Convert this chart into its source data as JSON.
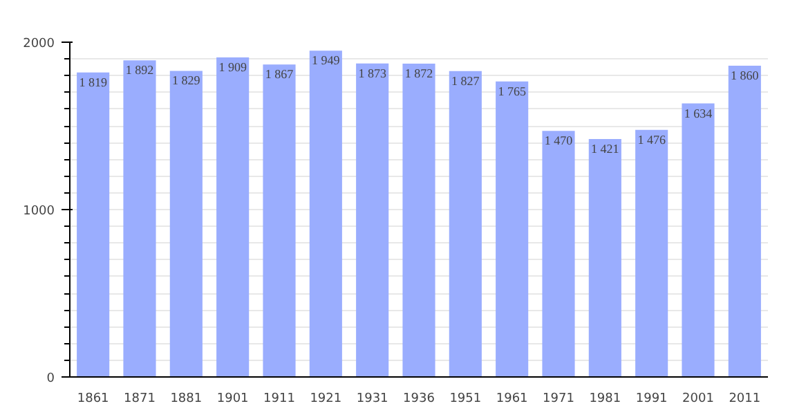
{
  "chart_data": {
    "type": "bar",
    "categories": [
      "1861",
      "1871",
      "1881",
      "1901",
      "1911",
      "1921",
      "1931",
      "1936",
      "1951",
      "1961",
      "1971",
      "1981",
      "1991",
      "2001",
      "2011"
    ],
    "values": [
      1819,
      1892,
      1829,
      1909,
      1867,
      1949,
      1873,
      1872,
      1827,
      1765,
      1470,
      1421,
      1476,
      1634,
      1860
    ],
    "value_labels": [
      "1 819",
      "1 892",
      "1 829",
      "1 909",
      "1 867",
      "1 949",
      "1 873",
      "1 872",
      "1 827",
      "1 765",
      "1 470",
      "1 421",
      "1 476",
      "1 634",
      "1 860"
    ],
    "color": "#9aadfe",
    "ylim": [
      0,
      2000
    ],
    "yticks": [
      0,
      1000,
      2000
    ],
    "grid": "y"
  }
}
